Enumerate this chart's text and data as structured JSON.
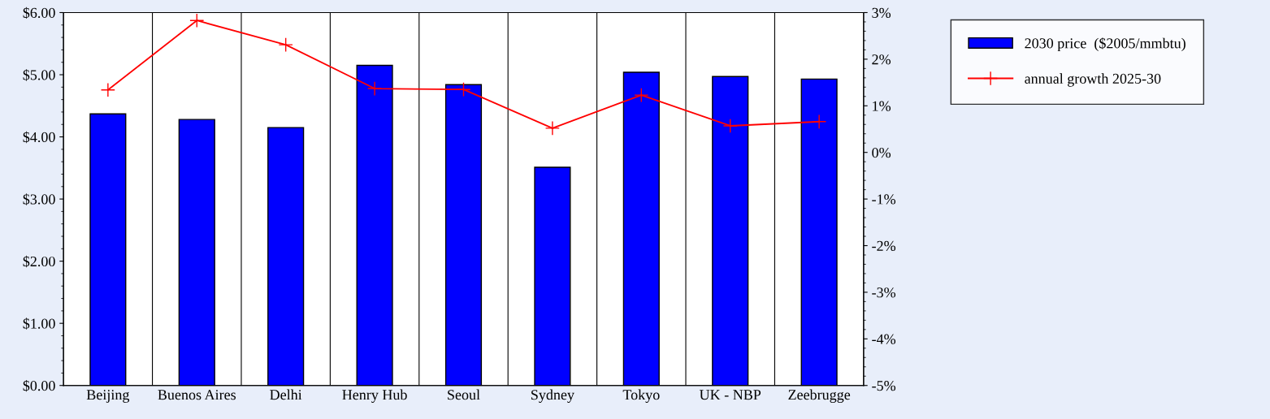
{
  "chart_data": {
    "type": "bar",
    "categories": [
      "Beijing",
      "Buenos Aires",
      "Delhi",
      "Henry Hub",
      "Seoul",
      "Sydney",
      "Tokyo",
      "UK - NBP",
      "Zeebrugge"
    ],
    "series": [
      {
        "name": "2030 price  ($2005/mmbtu)",
        "color": "#0000ff",
        "values": [
          4.37,
          4.28,
          4.15,
          5.15,
          4.84,
          3.51,
          5.04,
          4.97,
          4.93
        ]
      },
      {
        "name": "annual growth 2025-30",
        "type": "line",
        "axis": "y2",
        "color": "#ff0000",
        "marker": "cross",
        "values": [
          1.34,
          2.83,
          2.31,
          1.37,
          1.35,
          0.52,
          1.23,
          0.57,
          0.66
        ]
      }
    ],
    "ylim": [
      0,
      6
    ],
    "yticks": [
      {
        "value": 0,
        "label": "$0.00"
      },
      {
        "value": 1,
        "label": "$1.00"
      },
      {
        "value": 2,
        "label": "$2.00"
      },
      {
        "value": 3,
        "label": "$3.00"
      },
      {
        "value": 4,
        "label": "$4.00"
      },
      {
        "value": 5,
        "label": "$5.00"
      },
      {
        "value": 6,
        "label": "$6.00"
      }
    ],
    "y2lim": [
      -5,
      3
    ],
    "y2ticks": [
      {
        "value": -5,
        "label": "-5%"
      },
      {
        "value": -4,
        "label": "-4%"
      },
      {
        "value": -3,
        "label": "-3%"
      },
      {
        "value": -2,
        "label": "-2%"
      },
      {
        "value": -1,
        "label": "-1%"
      },
      {
        "value": 0,
        "label": "0%"
      },
      {
        "value": 1,
        "label": "1%"
      },
      {
        "value": 2,
        "label": "2%"
      },
      {
        "value": 3,
        "label": "3%"
      }
    ],
    "grid": "x",
    "legend": "right"
  }
}
